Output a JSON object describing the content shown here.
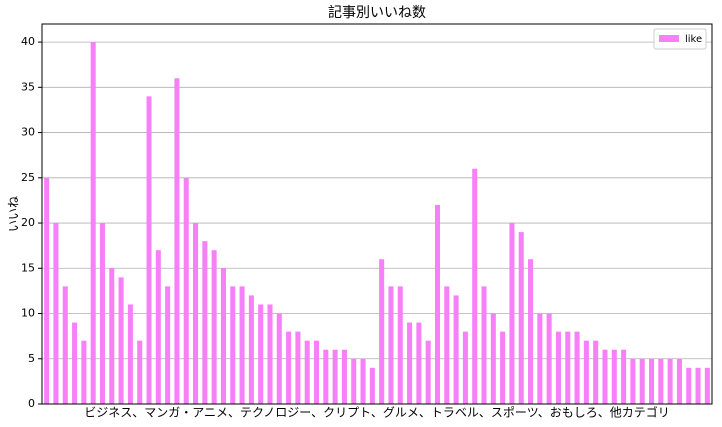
{
  "chart_data": {
    "type": "bar",
    "title": "記事別いいね数",
    "x_label": "ビジネス、マンガ・アニメ、テクノロジー、クリプト、グルメ、トラベル、スポーツ、おもしろ、他カテゴリ",
    "y_label": "いいね",
    "series": [
      {
        "name": "like",
        "color": "#f77ff7",
        "values": [
          25,
          20,
          13,
          9,
          7,
          40,
          20,
          15,
          14,
          11,
          7,
          34,
          17,
          13,
          36,
          25,
          20,
          18,
          17,
          15,
          13,
          13,
          12,
          11,
          11,
          10,
          8,
          8,
          7,
          7,
          6,
          6,
          6,
          5,
          5,
          4,
          16,
          13,
          13,
          9,
          9,
          7,
          22,
          13,
          12,
          8,
          26,
          13,
          10,
          8,
          20,
          19,
          16,
          10,
          10,
          8,
          8,
          8,
          7,
          7,
          6,
          6,
          6,
          5,
          5,
          5,
          5,
          5,
          5,
          4,
          4,
          4
        ]
      }
    ],
    "ylim": [
      0,
      42
    ],
    "yticks": [
      0,
      5,
      10,
      15,
      20,
      25,
      30,
      35,
      40
    ],
    "grid": true,
    "legend": "upper right"
  }
}
